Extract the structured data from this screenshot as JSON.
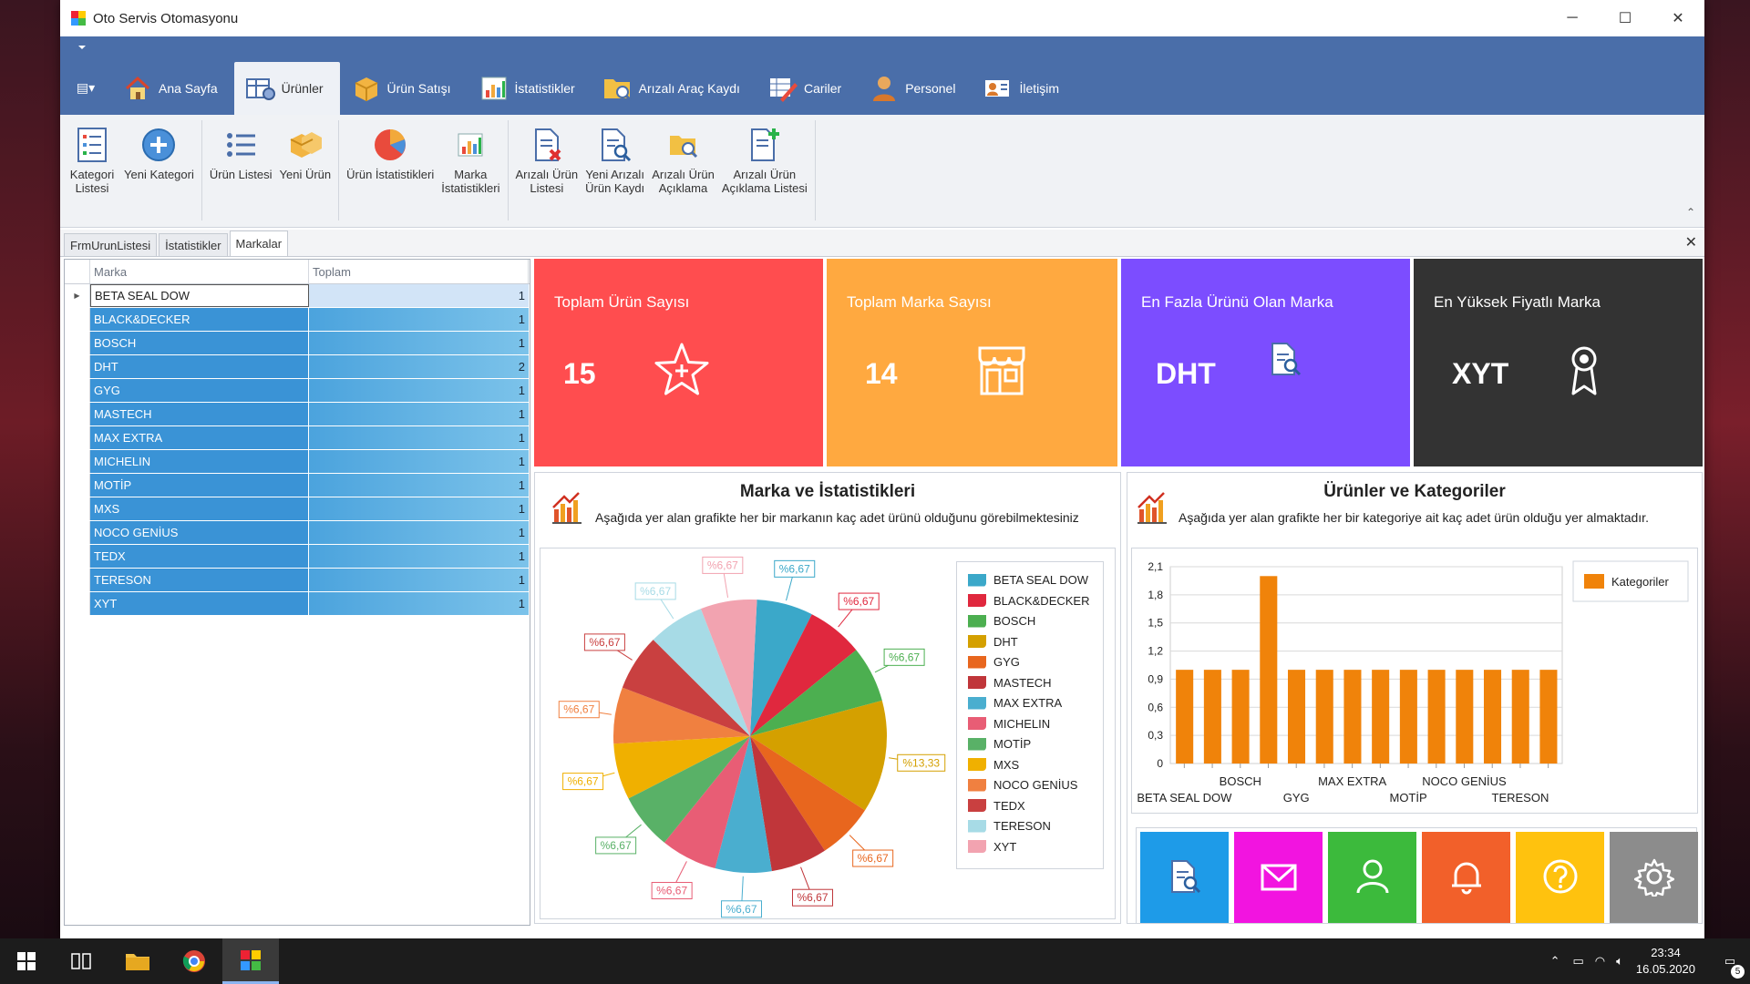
{
  "window": {
    "title": "Oto Servis Otomasyonu",
    "minimize_label": "─",
    "maximize_label": "☐",
    "close_label": "✕"
  },
  "tabs": [
    {
      "label": "Ana Sayfa",
      "icon": "house-icon"
    },
    {
      "label": "Ürünler",
      "icon": "table-gear-icon",
      "active": true
    },
    {
      "label": "Ürün Satışı",
      "icon": "package-icon"
    },
    {
      "label": "İstatistikler",
      "icon": "bar-chart-icon"
    },
    {
      "label": "Arızalı Araç Kaydı",
      "icon": "folder-search-icon"
    },
    {
      "label": "Cariler",
      "icon": "pencil-grid-icon"
    },
    {
      "label": "Personel",
      "icon": "person-icon"
    },
    {
      "label": "İletişim",
      "icon": "contact-card-icon"
    }
  ],
  "ribbon": {
    "groups": [
      [
        {
          "label": "Kategori\nListesi",
          "icon": "list-icon"
        },
        {
          "label": "Yeni Kategori",
          "icon": "plus-circle-icon"
        }
      ],
      [
        {
          "label": "Ürün Listesi",
          "icon": "bullet-list-icon"
        },
        {
          "label": "Yeni Ürün",
          "icon": "boxes-icon"
        }
      ],
      [
        {
          "label": "Ürün İstatistikleri",
          "icon": "pie-icon"
        },
        {
          "label": "Marka\nİstatistikleri",
          "icon": "bar-chart-icon"
        }
      ],
      [
        {
          "label": "Arızalı Ürün\nListesi",
          "icon": "doc-x-icon"
        },
        {
          "label": "Yeni Arızalı\nÜrün Kaydı",
          "icon": "doc-search-icon"
        },
        {
          "label": "Arızalı Ürün\nAçıklama",
          "icon": "folder-search-icon"
        },
        {
          "label": "Arızalı Ürün\nAçıklama Listesi",
          "icon": "doc-plus-icon"
        }
      ]
    ]
  },
  "doc_tabs": [
    {
      "label": "FrmUrunListesi"
    },
    {
      "label": "İstatistikler"
    },
    {
      "label": "Markalar",
      "active": true
    }
  ],
  "grid": {
    "headers": [
      "Marka",
      "Toplam"
    ],
    "rows": [
      {
        "marka": "BETA SEAL DOW",
        "toplam": "1"
      },
      {
        "marka": "BLACK&DECKER",
        "toplam": "1"
      },
      {
        "marka": "BOSCH",
        "toplam": "1"
      },
      {
        "marka": "DHT",
        "toplam": "2"
      },
      {
        "marka": "GYG",
        "toplam": "1"
      },
      {
        "marka": "MASTECH",
        "toplam": "1"
      },
      {
        "marka": "MAX EXTRA",
        "toplam": "1"
      },
      {
        "marka": "MICHELIN",
        "toplam": "1"
      },
      {
        "marka": "MOTİP",
        "toplam": "1"
      },
      {
        "marka": "MXS",
        "toplam": "1"
      },
      {
        "marka": "NOCO GENİUS",
        "toplam": "1"
      },
      {
        "marka": "TEDX",
        "toplam": "1"
      },
      {
        "marka": "TERESON",
        "toplam": "1"
      },
      {
        "marka": "XYT",
        "toplam": "1"
      }
    ]
  },
  "cards": [
    {
      "title": "Toplam Ürün Sayısı",
      "value": "15",
      "color": "#ff4d4f",
      "icon": "star-icon"
    },
    {
      "title": "Toplam Marka Sayısı",
      "value": "14",
      "color": "#ffa940",
      "icon": "store-icon"
    },
    {
      "title": "En Fazla Ürünü Olan Marka",
      "value": "DHT",
      "color": "#7c4dff",
      "icon": "doc-search-icon"
    },
    {
      "title": "En Yüksek Fiyatlı Marka",
      "value": "XYT",
      "color": "#333333",
      "icon": "award-icon"
    }
  ],
  "pie_panel": {
    "title": "Marka ve İstatistikleri",
    "subtitle": "Aşağıda yer alan grafikte her bir markanın kaç adet ürünü olduğunu görebilmektesiniz"
  },
  "bar_panel": {
    "title": "Ürünler ve Kategoriler",
    "subtitle": "Aşağıda yer alan grafikte her bir kategoriye ait kaç adet ürün olduğu yer almaktadır.",
    "legend": "Kategoriler"
  },
  "chart_data": [
    {
      "type": "pie",
      "categories": [
        "BETA SEAL DOW",
        "BLACK&DECKER",
        "BOSCH",
        "DHT",
        "GYG",
        "MASTECH",
        "MAX EXTRA",
        "MICHELIN",
        "MOTİP",
        "MXS",
        "NOCO GENİUS",
        "TEDX",
        "TERESON",
        "XYT"
      ],
      "values": [
        1,
        1,
        1,
        2,
        1,
        1,
        1,
        1,
        1,
        1,
        1,
        1,
        1,
        1
      ],
      "labels": [
        "%6,67",
        "%6,67",
        "%6,67",
        "%13,33",
        "%6,67",
        "%6,67",
        "%6,67",
        "%6,67",
        "%6,67",
        "%6,67",
        "%6,67",
        "%6,67",
        "%6,67",
        "%6,67"
      ],
      "colors": [
        "#3ba8c9",
        "#e0283e",
        "#4caf50",
        "#d4a000",
        "#e8661e",
        "#c0363a",
        "#4aaecf",
        "#e85d75",
        "#59b167",
        "#f0b000",
        "#f08040",
        "#c94040",
        "#a7dbe6",
        "#f2a3b0"
      ],
      "legend_position": "right"
    },
    {
      "type": "bar",
      "categories": [
        "BETA SEAL DOW",
        "BLACK&DECKER",
        "BOSCH",
        "DHT",
        "GYG",
        "MASTECH",
        "MAX EXTRA",
        "MICHELIN",
        "MOTİP",
        "MXS",
        "NOCO GENİUS",
        "TEDX",
        "TERESON",
        "XYT"
      ],
      "shown_x_labels": [
        "BETA SEAL DOW",
        "BOSCH",
        "GYG",
        "MAX EXTRA",
        "MOTİP",
        "NOCO GENİUS",
        "TERESON"
      ],
      "series": [
        {
          "name": "Kategoriler",
          "values": [
            1,
            1,
            1,
            2,
            1,
            1,
            1,
            1,
            1,
            1,
            1,
            1,
            1,
            1
          ]
        }
      ],
      "yticks": [
        "0",
        "0,3",
        "0,6",
        "0,9",
        "1,2",
        "1,5",
        "1,8",
        "2,1"
      ],
      "ylim": [
        0,
        2.1
      ],
      "color": "#f0830a",
      "grid": true,
      "legend_position": "top-right"
    }
  ],
  "tiles": [
    {
      "color": "#1e9be8",
      "icon": "doc-search-icon"
    },
    {
      "color": "#f214e0",
      "icon": "mail-icon"
    },
    {
      "color": "#3cba3c",
      "icon": "user-icon"
    },
    {
      "color": "#f2602a",
      "icon": "bell-icon"
    },
    {
      "color": "#ffc20e",
      "icon": "help-icon"
    },
    {
      "color": "#8c8c8c",
      "icon": "settings-icon"
    }
  ],
  "taskbar": {
    "time": "23:34",
    "date": "16.05.2020",
    "notif_count": "5"
  }
}
